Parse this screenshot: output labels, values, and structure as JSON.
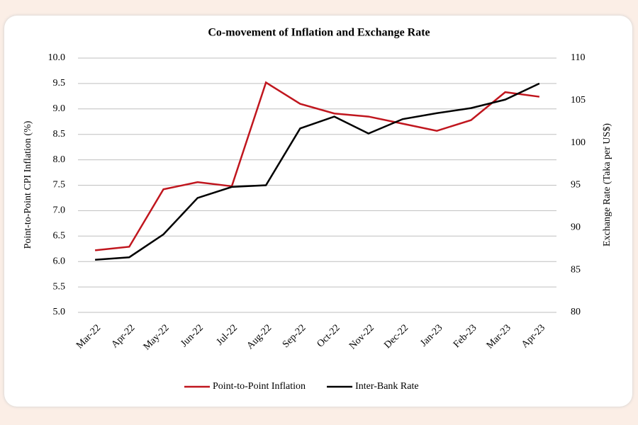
{
  "chart_data": {
    "type": "line",
    "title": "Co-movement of Inflation and Exchange Rate",
    "y_label": "Point-to-Point CPI Inflation (%)",
    "y2_label": "Exchange Rate (Taka per US$)",
    "categories": [
      "Mar-22",
      "Apr-22",
      "May-22",
      "Jun-22",
      "Jul-22",
      "Aug-22",
      "Sep-22",
      "Oct-22",
      "Nov-22",
      "Dec-22",
      "Jan-23",
      "Feb-23",
      "Mar-23",
      "Apr-23"
    ],
    "series": [
      {
        "name": "Point-to-Point Inflation",
        "color": "#c0161e",
        "values": [
          6.22,
          6.29,
          7.42,
          7.56,
          7.48,
          9.52,
          9.1,
          8.91,
          8.85,
          8.71,
          8.57,
          8.78,
          9.33,
          9.24
        ]
      },
      {
        "name": "Inter-Bank Rate",
        "color": "#000000",
        "axis": "y2",
        "values": [
          86.2,
          86.5,
          89.2,
          93.5,
          94.8,
          95.0,
          101.7,
          103.1,
          101.1,
          102.8,
          103.5,
          104.1,
          105.1,
          107.0
        ]
      }
    ],
    "ylim": [
      5,
      10
    ],
    "yticks": [
      {
        "value": 5,
        "label": "5.0"
      },
      5.5,
      {
        "value": 6,
        "label": "6.0"
      },
      6.5,
      {
        "value": 7,
        "label": "7.0"
      },
      7.5,
      {
        "value": 8,
        "label": "8.0"
      },
      8.5,
      {
        "value": 9,
        "label": "9.0"
      },
      9.5,
      {
        "value": 10,
        "label": "10.0"
      }
    ],
    "y2lim": [
      80,
      110
    ],
    "y2ticks": [
      80,
      85,
      90,
      95,
      100,
      105,
      110
    ],
    "grid": true,
    "legend": "bottom"
  }
}
